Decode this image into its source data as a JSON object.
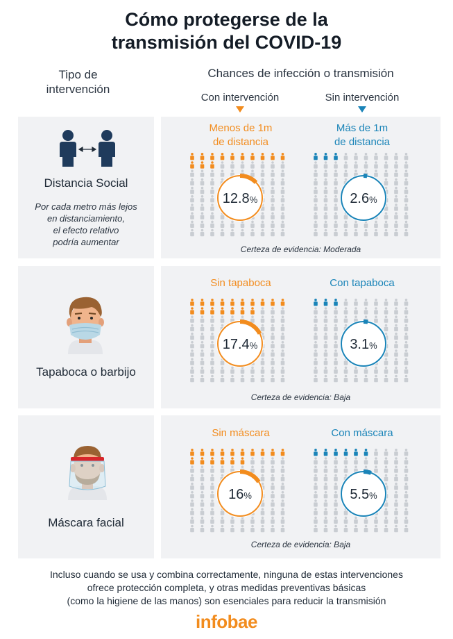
{
  "title_line1": "Cómo protegerse de la",
  "title_line2": "transmisión del COVID-19",
  "col_left_header_line1": "Tipo de",
  "col_left_header_line2": "intervención",
  "col_right_header": "Chances de infección o transmisión",
  "with_intervention_label": "Con intervención",
  "without_intervention_label": "Sin intervención",
  "colors": {
    "orange": "#f28c1e",
    "blue": "#1a84b8",
    "grey": "#c9cdd2",
    "panel": "#f1f2f4"
  },
  "chart_data": {
    "type": "pictogram-percent",
    "rows": [
      {
        "name": "Distancia Social",
        "note": [
          "Por cada metro más lejos",
          "en distanciamiento,",
          "el efecto relativo",
          "podría aumentar"
        ],
        "certainty": "Certeza de evidencia: Moderada",
        "left": {
          "label": [
            "Menos de 1m",
            "de distancia"
          ],
          "value": 12.8,
          "display": "12.8",
          "color": "orange"
        },
        "right": {
          "label": [
            "Más de 1m",
            "de distancia"
          ],
          "value": 2.6,
          "display": "2.6",
          "color": "blue"
        }
      },
      {
        "name": "Tapaboca o barbijo",
        "note": [],
        "certainty": "Certeza de evidencia: Baja",
        "left": {
          "label": [
            "Sin tapaboca"
          ],
          "value": 17.4,
          "display": "17.4",
          "color": "orange"
        },
        "right": {
          "label": [
            "Con tapaboca"
          ],
          "value": 3.1,
          "display": "3.1",
          "color": "blue"
        }
      },
      {
        "name": "Máscara facial",
        "note": [],
        "certainty": "Certeza de evidencia: Baja",
        "left": {
          "label": [
            "Sin máscara"
          ],
          "value": 16,
          "display": "16",
          "color": "orange"
        },
        "right": {
          "label": [
            "Con máscara"
          ],
          "value": 5.5,
          "display": "5.5",
          "color": "blue"
        }
      }
    ]
  },
  "footer_line1": "Incluso cuando se usa y combina correctamente, ninguna de estas intervenciones",
  "footer_line2": "ofrece protección completa, y otras medidas preventivas básicas",
  "footer_line3": "(como la higiene de las manos) son esenciales para reducir la transmisión",
  "logo": "infobae"
}
